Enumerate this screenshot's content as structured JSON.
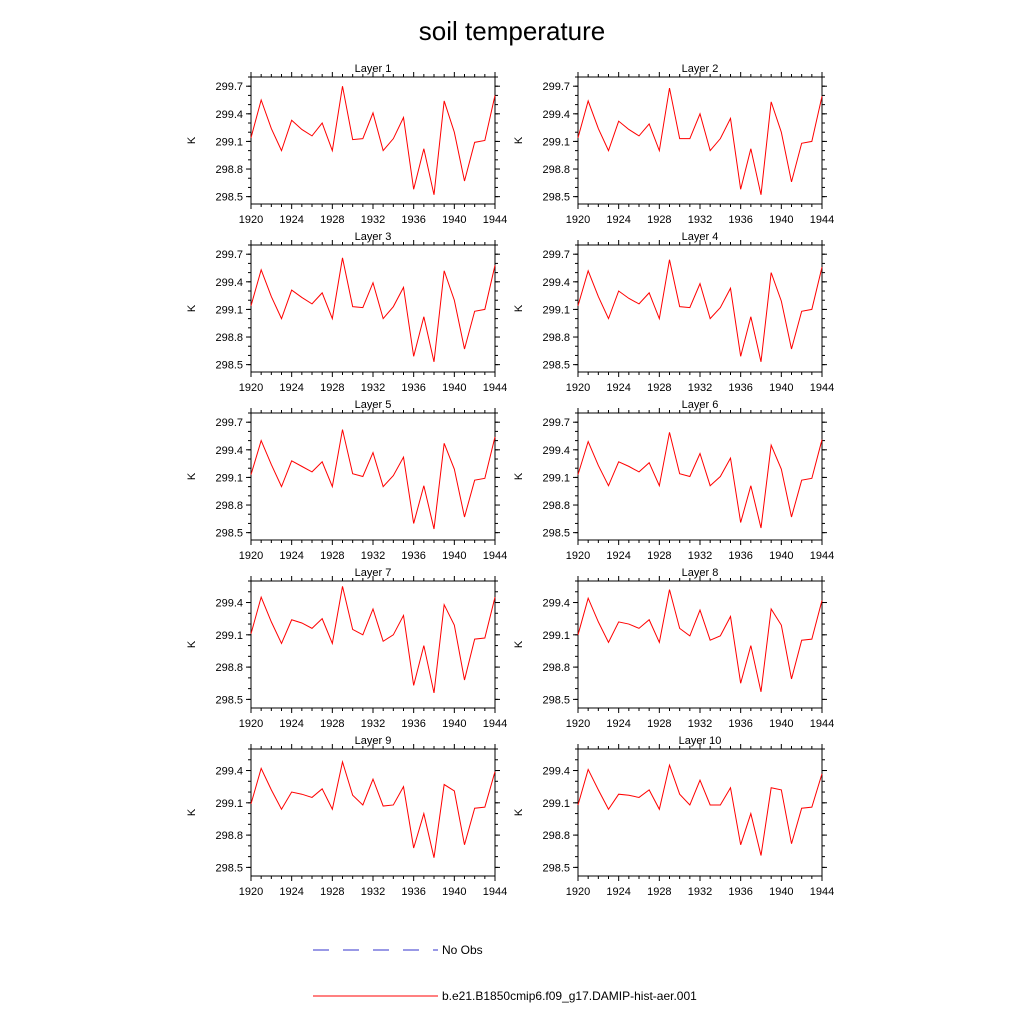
{
  "title": "soil temperature",
  "colors": {
    "model_line": "#ff0000",
    "obs_line": "#3333cc",
    "axis": "#000000"
  },
  "legend": {
    "placement": "bottom-center",
    "entries": [
      {
        "label": "No Obs",
        "style": "dashed",
        "color": "#3333cc"
      },
      {
        "label": "b.e21.B1850cmip6.f09_g17.DAMIP-hist-aer.001",
        "style": "solid",
        "color": "#ff0000"
      }
    ]
  },
  "chart_data": [
    {
      "type": "line",
      "title": "Layer 1",
      "ylabel": "K",
      "xlim": [
        1920,
        1944
      ],
      "ylim": [
        298.42,
        299.8
      ],
      "xticks": [
        "1920",
        "1924",
        "1928",
        "1932",
        "1936",
        "1940",
        "1944"
      ],
      "yticks": [
        "298.5",
        "298.8",
        "299.1",
        "299.4",
        "299.7"
      ],
      "x": [
        1920,
        1921,
        1922,
        1923,
        1924,
        1925,
        1926,
        1927,
        1928,
        1929,
        1930,
        1931,
        1932,
        1933,
        1934,
        1935,
        1936,
        1937,
        1938,
        1939,
        1940,
        1941,
        1942,
        1943,
        1944
      ],
      "series": [
        {
          "name": "b.e21.B1850cmip6.f09_g17.DAMIP-hist-aer.001",
          "values": [
            299.14,
            299.55,
            299.24,
            299.0,
            299.33,
            299.23,
            299.16,
            299.3,
            299.0,
            299.7,
            299.12,
            299.13,
            299.41,
            299.0,
            299.13,
            299.36,
            298.58,
            299.02,
            298.52,
            299.54,
            299.2,
            298.67,
            299.09,
            299.11,
            299.6
          ]
        }
      ]
    },
    {
      "type": "line",
      "title": "Layer 2",
      "ylabel": "K",
      "xlim": [
        1920,
        1944
      ],
      "ylim": [
        298.42,
        299.8
      ],
      "xticks": [
        "1920",
        "1924",
        "1928",
        "1932",
        "1936",
        "1940",
        "1944"
      ],
      "yticks": [
        "298.5",
        "298.8",
        "299.1",
        "299.4",
        "299.7"
      ],
      "x": [
        1920,
        1921,
        1922,
        1923,
        1924,
        1925,
        1926,
        1927,
        1928,
        1929,
        1930,
        1931,
        1932,
        1933,
        1934,
        1935,
        1936,
        1937,
        1938,
        1939,
        1940,
        1941,
        1942,
        1943,
        1944
      ],
      "series": [
        {
          "name": "b.e21.B1850cmip6.f09_g17.DAMIP-hist-aer.001",
          "values": [
            299.14,
            299.54,
            299.24,
            299.0,
            299.32,
            299.23,
            299.16,
            299.29,
            299.0,
            299.68,
            299.13,
            299.13,
            299.4,
            299.0,
            299.13,
            299.35,
            298.58,
            299.02,
            298.52,
            299.53,
            299.2,
            298.66,
            299.08,
            299.1,
            299.59
          ]
        }
      ]
    },
    {
      "type": "line",
      "title": "Layer 3",
      "ylabel": "K",
      "xlim": [
        1920,
        1944
      ],
      "ylim": [
        298.42,
        299.8
      ],
      "xticks": [
        "1920",
        "1924",
        "1928",
        "1932",
        "1936",
        "1940",
        "1944"
      ],
      "yticks": [
        "298.5",
        "298.8",
        "299.1",
        "299.4",
        "299.7"
      ],
      "x": [
        1920,
        1921,
        1922,
        1923,
        1924,
        1925,
        1926,
        1927,
        1928,
        1929,
        1930,
        1931,
        1932,
        1933,
        1934,
        1935,
        1936,
        1937,
        1938,
        1939,
        1940,
        1941,
        1942,
        1943,
        1944
      ],
      "series": [
        {
          "name": "b.e21.B1850cmip6.f09_g17.DAMIP-hist-aer.001",
          "values": [
            299.14,
            299.53,
            299.24,
            299.0,
            299.31,
            299.23,
            299.16,
            299.28,
            299.0,
            299.66,
            299.13,
            299.12,
            299.39,
            299.0,
            299.13,
            299.34,
            298.59,
            299.02,
            298.53,
            299.52,
            299.2,
            298.67,
            299.08,
            299.1,
            299.58
          ]
        }
      ]
    },
    {
      "type": "line",
      "title": "Layer 4",
      "ylabel": "K",
      "xlim": [
        1920,
        1944
      ],
      "ylim": [
        298.42,
        299.8
      ],
      "xticks": [
        "1920",
        "1924",
        "1928",
        "1932",
        "1936",
        "1940",
        "1944"
      ],
      "yticks": [
        "298.5",
        "298.8",
        "299.1",
        "299.4",
        "299.7"
      ],
      "x": [
        1920,
        1921,
        1922,
        1923,
        1924,
        1925,
        1926,
        1927,
        1928,
        1929,
        1930,
        1931,
        1932,
        1933,
        1934,
        1935,
        1936,
        1937,
        1938,
        1939,
        1940,
        1941,
        1942,
        1943,
        1944
      ],
      "series": [
        {
          "name": "b.e21.B1850cmip6.f09_g17.DAMIP-hist-aer.001",
          "values": [
            299.14,
            299.52,
            299.24,
            299.0,
            299.3,
            299.22,
            299.16,
            299.28,
            299.0,
            299.64,
            299.13,
            299.12,
            299.38,
            299.0,
            299.12,
            299.33,
            298.59,
            299.02,
            298.53,
            299.5,
            299.19,
            298.67,
            299.08,
            299.1,
            299.56
          ]
        }
      ]
    },
    {
      "type": "line",
      "title": "Layer 5",
      "ylabel": "K",
      "xlim": [
        1920,
        1944
      ],
      "ylim": [
        298.42,
        299.8
      ],
      "xticks": [
        "1920",
        "1924",
        "1928",
        "1932",
        "1936",
        "1940",
        "1944"
      ],
      "yticks": [
        "298.5",
        "298.8",
        "299.1",
        "299.4",
        "299.7"
      ],
      "x": [
        1920,
        1921,
        1922,
        1923,
        1924,
        1925,
        1926,
        1927,
        1928,
        1929,
        1930,
        1931,
        1932,
        1933,
        1934,
        1935,
        1936,
        1937,
        1938,
        1939,
        1940,
        1941,
        1942,
        1943,
        1944
      ],
      "series": [
        {
          "name": "b.e21.B1850cmip6.f09_g17.DAMIP-hist-aer.001",
          "values": [
            299.13,
            299.5,
            299.24,
            299.0,
            299.28,
            299.22,
            299.16,
            299.27,
            299.0,
            299.62,
            299.14,
            299.11,
            299.37,
            299.0,
            299.12,
            299.32,
            298.6,
            299.01,
            298.54,
            299.47,
            299.19,
            298.67,
            299.07,
            299.09,
            299.54
          ]
        }
      ]
    },
    {
      "type": "line",
      "title": "Layer 6",
      "ylabel": "K",
      "xlim": [
        1920,
        1944
      ],
      "ylim": [
        298.42,
        299.8
      ],
      "xticks": [
        "1920",
        "1924",
        "1928",
        "1932",
        "1936",
        "1940",
        "1944"
      ],
      "yticks": [
        "298.5",
        "298.8",
        "299.1",
        "299.4",
        "299.7"
      ],
      "x": [
        1920,
        1921,
        1922,
        1923,
        1924,
        1925,
        1926,
        1927,
        1928,
        1929,
        1930,
        1931,
        1932,
        1933,
        1934,
        1935,
        1936,
        1937,
        1938,
        1939,
        1940,
        1941,
        1942,
        1943,
        1944
      ],
      "series": [
        {
          "name": "b.e21.B1850cmip6.f09_g17.DAMIP-hist-aer.001",
          "values": [
            299.13,
            299.49,
            299.23,
            299.01,
            299.27,
            299.22,
            299.16,
            299.26,
            299.01,
            299.59,
            299.14,
            299.11,
            299.36,
            299.01,
            299.11,
            299.31,
            298.61,
            299.01,
            298.55,
            299.45,
            299.19,
            298.67,
            299.07,
            299.09,
            299.51
          ]
        }
      ]
    },
    {
      "type": "line",
      "title": "Layer 7",
      "ylabel": "K",
      "xlim": [
        1920,
        1944
      ],
      "ylim": [
        298.42,
        299.6
      ],
      "xticks": [
        "1920",
        "1924",
        "1928",
        "1932",
        "1936",
        "1940",
        "1944"
      ],
      "yticks": [
        "298.5",
        "298.8",
        "299.1",
        "299.4"
      ],
      "x": [
        1920,
        1921,
        1922,
        1923,
        1924,
        1925,
        1926,
        1927,
        1928,
        1929,
        1930,
        1931,
        1932,
        1933,
        1934,
        1935,
        1936,
        1937,
        1938,
        1939,
        1940,
        1941,
        1942,
        1943,
        1944
      ],
      "series": [
        {
          "name": "b.e21.B1850cmip6.f09_g17.DAMIP-hist-aer.001",
          "values": [
            299.11,
            299.45,
            299.22,
            299.02,
            299.24,
            299.21,
            299.16,
            299.25,
            299.02,
            299.55,
            299.15,
            299.1,
            299.34,
            299.04,
            299.1,
            299.28,
            298.63,
            299.0,
            298.56,
            299.38,
            299.19,
            298.68,
            299.06,
            299.07,
            299.45
          ]
        }
      ]
    },
    {
      "type": "line",
      "title": "Layer 8",
      "ylabel": "K",
      "xlim": [
        1920,
        1944
      ],
      "ylim": [
        298.42,
        299.6
      ],
      "xticks": [
        "1920",
        "1924",
        "1928",
        "1932",
        "1936",
        "1940",
        "1944"
      ],
      "yticks": [
        "298.5",
        "298.8",
        "299.1",
        "299.4"
      ],
      "x": [
        1920,
        1921,
        1922,
        1923,
        1924,
        1925,
        1926,
        1927,
        1928,
        1929,
        1930,
        1931,
        1932,
        1933,
        1934,
        1935,
        1936,
        1937,
        1938,
        1939,
        1940,
        1941,
        1942,
        1943,
        1944
      ],
      "series": [
        {
          "name": "b.e21.B1850cmip6.f09_g17.DAMIP-hist-aer.001",
          "values": [
            299.1,
            299.44,
            299.22,
            299.03,
            299.22,
            299.2,
            299.16,
            299.24,
            299.03,
            299.52,
            299.16,
            299.09,
            299.33,
            299.05,
            299.09,
            299.27,
            298.65,
            299.0,
            298.57,
            299.34,
            299.19,
            298.69,
            299.05,
            299.06,
            299.42
          ]
        }
      ]
    },
    {
      "type": "line",
      "title": "Layer 9",
      "ylabel": "K",
      "xlim": [
        1920,
        1944
      ],
      "ylim": [
        298.42,
        299.6
      ],
      "xticks": [
        "1920",
        "1924",
        "1928",
        "1932",
        "1936",
        "1940",
        "1944"
      ],
      "yticks": [
        "298.5",
        "298.8",
        "299.1",
        "299.4"
      ],
      "x": [
        1920,
        1921,
        1922,
        1923,
        1924,
        1925,
        1926,
        1927,
        1928,
        1929,
        1930,
        1931,
        1932,
        1933,
        1934,
        1935,
        1936,
        1937,
        1938,
        1939,
        1940,
        1941,
        1942,
        1943,
        1944
      ],
      "series": [
        {
          "name": "b.e21.B1850cmip6.f09_g17.DAMIP-hist-aer.001",
          "values": [
            299.09,
            299.42,
            299.22,
            299.04,
            299.2,
            299.18,
            299.15,
            299.23,
            299.04,
            299.48,
            299.17,
            299.08,
            299.32,
            299.07,
            299.08,
            299.25,
            298.68,
            299.0,
            298.59,
            299.27,
            299.21,
            298.71,
            299.05,
            299.06,
            299.39
          ]
        }
      ]
    },
    {
      "type": "line",
      "title": "Layer 10",
      "ylabel": "K",
      "xlim": [
        1920,
        1944
      ],
      "ylim": [
        298.42,
        299.6
      ],
      "xticks": [
        "1920",
        "1924",
        "1928",
        "1932",
        "1936",
        "1940",
        "1944"
      ],
      "yticks": [
        "298.5",
        "298.8",
        "299.1",
        "299.4"
      ],
      "x": [
        1920,
        1921,
        1922,
        1923,
        1924,
        1925,
        1926,
        1927,
        1928,
        1929,
        1930,
        1931,
        1932,
        1933,
        1934,
        1935,
        1936,
        1937,
        1938,
        1939,
        1940,
        1941,
        1942,
        1943,
        1944
      ],
      "series": [
        {
          "name": "b.e21.B1850cmip6.f09_g17.DAMIP-hist-aer.001",
          "values": [
            299.08,
            299.41,
            299.22,
            299.04,
            299.18,
            299.17,
            299.15,
            299.22,
            299.04,
            299.45,
            299.18,
            299.08,
            299.31,
            299.08,
            299.08,
            299.24,
            298.71,
            299.0,
            298.61,
            299.24,
            299.22,
            298.72,
            299.05,
            299.06,
            299.37
          ]
        }
      ]
    }
  ]
}
